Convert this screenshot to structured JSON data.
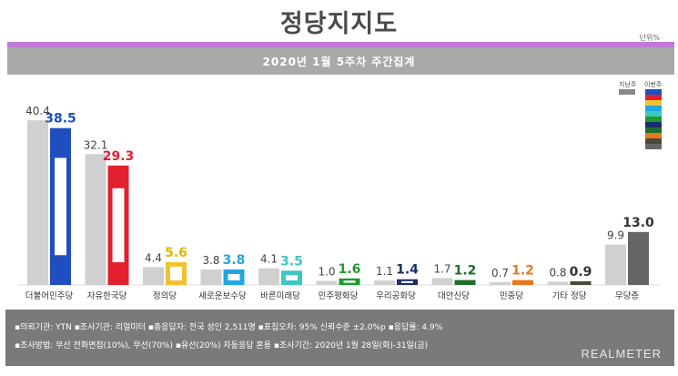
{
  "title": "정당지지도",
  "unit": "단위%",
  "subtitle": "2020년 1월 5주차 주간집계",
  "legend": {
    "last_week": "지난주",
    "this_week": "이번주"
  },
  "colors": {
    "last_week": "#d0d0d0",
    "purple": "#c07ad6",
    "notes_bg": "#7a7a7a"
  },
  "chart_data": {
    "type": "bar",
    "categories": [
      "더불어민주당",
      "자유한국당",
      "정의당",
      "새로운보수당",
      "바른미래당",
      "민주평화당",
      "우리공화당",
      "대안신당",
      "민중당",
      "기타 정당",
      "무당층"
    ],
    "series": [
      {
        "name": "지난주",
        "values": [
          40.4,
          32.1,
          4.4,
          3.8,
          4.1,
          1.0,
          1.1,
          1.7,
          0.7,
          0.8,
          9.9
        ]
      },
      {
        "name": "이번주",
        "values": [
          38.5,
          29.3,
          5.6,
          3.8,
          3.5,
          1.6,
          1.4,
          1.2,
          1.2,
          0.9,
          13.0
        ]
      }
    ],
    "this_week_colors": [
      "#1f4fbf",
      "#e2202e",
      "#f2c230",
      "#22a6e0",
      "#3cc7c2",
      "#1d9c2d",
      "#1a2e6b",
      "#1d6e2a",
      "#e8771e",
      "#4a4a3a",
      "#666666"
    ],
    "this_week_label_colors": [
      "#1f4fbf",
      "#e2202e",
      "#e6b800",
      "#22a6e0",
      "#3cc7c2",
      "#1d9c2d",
      "#1a2e6b",
      "#1d6e2a",
      "#e8771e",
      "#333333",
      "#333333"
    ],
    "ylim": [
      0,
      42
    ]
  },
  "notes": [
    "▪의뢰기관: YTN ▪조사기관: 리얼미터 ▪총응답자: 전국 성인 2,511명 ▪표집오차: 95% 신뢰수준 ±2.0%p ▪응답률: 4.9%",
    "▪조사방법: 무선 전화면접(10%), 무선(70%) ▪유선(20%) 자동응답 혼용 ▪조사기간: 2020년 1월 28일(화)-31일(금)"
  ],
  "brand": "REALMETER"
}
